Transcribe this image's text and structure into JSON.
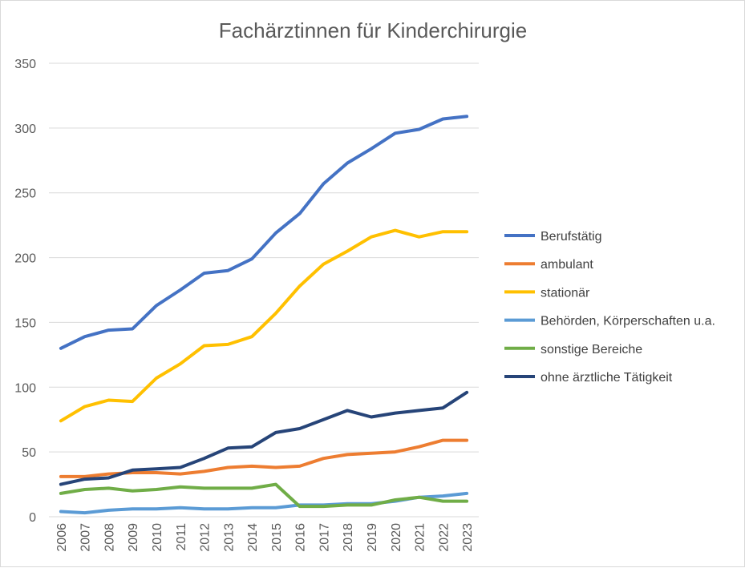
{
  "chart_data": {
    "type": "line",
    "title": "Fachärztinnen für Kinderchirurgie",
    "xlabel": "",
    "ylabel": "",
    "ylim": [
      0,
      350
    ],
    "y_ticks": [
      "0",
      "50",
      "100",
      "150",
      "200",
      "250",
      "300",
      "350"
    ],
    "grid": true,
    "legend_position": "right",
    "categories": [
      "2006",
      "2007",
      "2008",
      "2009",
      "2010",
      "2011",
      "2012",
      "2013",
      "2014",
      "2015",
      "2016",
      "2017",
      "2018",
      "2019",
      "2020",
      "2021",
      "2022",
      "2023"
    ],
    "series": [
      {
        "name": "Berufstätig",
        "color": "#4472c4",
        "values": [
          130,
          139,
          144,
          145,
          163,
          175,
          188,
          190,
          199,
          219,
          234,
          257,
          273,
          284,
          296,
          299,
          307,
          309
        ]
      },
      {
        "name": "ambulant",
        "color": "#ed7d31",
        "values": [
          31,
          31,
          33,
          34,
          34,
          33,
          35,
          38,
          39,
          38,
          39,
          45,
          48,
          49,
          50,
          54,
          59,
          59
        ]
      },
      {
        "name": "stationär",
        "color": "#ffc000",
        "values": [
          74,
          85,
          90,
          89,
          107,
          118,
          132,
          133,
          139,
          157,
          178,
          195,
          205,
          216,
          221,
          216,
          220,
          220
        ]
      },
      {
        "name": "Behörden, Körperschaften u.a.",
        "color": "#5b9bd5",
        "values": [
          4,
          3,
          5,
          6,
          6,
          7,
          6,
          6,
          7,
          7,
          9,
          9,
          10,
          10,
          12,
          15,
          16,
          18
        ]
      },
      {
        "name": "sonstige Bereiche",
        "color": "#70ad47",
        "values": [
          18,
          21,
          22,
          20,
          21,
          23,
          22,
          22,
          22,
          25,
          8,
          8,
          9,
          9,
          13,
          15,
          12,
          12
        ]
      },
      {
        "name": "ohne ärztliche Tätigkeit",
        "color": "#264478",
        "values": [
          25,
          29,
          30,
          36,
          37,
          38,
          45,
          53,
          54,
          65,
          68,
          75,
          82,
          77,
          80,
          82,
          84,
          96
        ]
      }
    ]
  }
}
